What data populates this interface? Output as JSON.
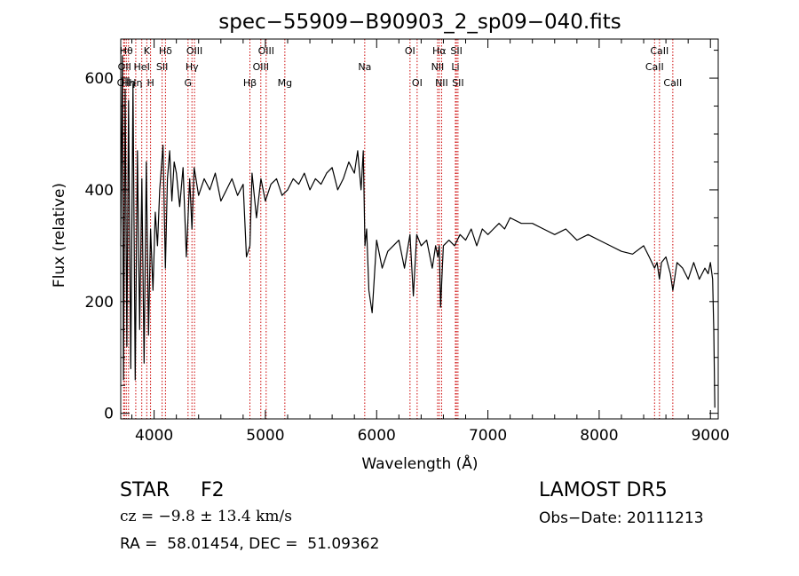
{
  "chart_data": {
    "type": "line",
    "title": "spec−55909−B90903_2_sp09−040.fits",
    "xlabel": "Wavelength (Å)",
    "ylabel": "Flux (relative)",
    "xlim": [
      3700,
      9070
    ],
    "ylim": [
      -10,
      670
    ],
    "x_ticks": [
      4000,
      5000,
      6000,
      7000,
      8000,
      9000
    ],
    "y_ticks": [
      0,
      200,
      400,
      600
    ],
    "grid": false,
    "line_color": "#000000",
    "marker_color": "#cc0000",
    "series": [
      {
        "x": [
          3700,
          3715,
          3725,
          3740,
          3755,
          3770,
          3790,
          3810,
          3830,
          3850,
          3870,
          3890,
          3910,
          3930,
          3950,
          3968,
          3990,
          4010,
          4030,
          4050,
          4080,
          4101,
          4120,
          4140,
          4160,
          4180,
          4200,
          4230,
          4260,
          4290,
          4320,
          4340,
          4360,
          4400,
          4450,
          4500,
          4550,
          4600,
          4650,
          4700,
          4750,
          4800,
          4830,
          4861,
          4880,
          4920,
          4960,
          5000,
          5050,
          5100,
          5150,
          5200,
          5250,
          5300,
          5350,
          5400,
          5450,
          5500,
          5550,
          5600,
          5650,
          5700,
          5750,
          5800,
          5830,
          5860,
          5880,
          5895,
          5910,
          5930,
          5960,
          6000,
          6050,
          6100,
          6150,
          6200,
          6250,
          6300,
          6330,
          6360,
          6400,
          6450,
          6500,
          6530,
          6550,
          6563,
          6575,
          6600,
          6650,
          6700,
          6750,
          6800,
          6850,
          6900,
          6950,
          7000,
          7050,
          7100,
          7150,
          7200,
          7300,
          7400,
          7500,
          7600,
          7700,
          7800,
          7900,
          8000,
          8100,
          8200,
          8300,
          8400,
          8450,
          8498,
          8520,
          8542,
          8560,
          8600,
          8640,
          8662,
          8700,
          8750,
          8800,
          8850,
          8900,
          8950,
          8980,
          9000,
          9020,
          9030,
          9040
        ],
        "y": [
          300,
          640,
          60,
          580,
          120,
          560,
          80,
          590,
          60,
          470,
          150,
          420,
          90,
          450,
          140,
          330,
          220,
          360,
          300,
          400,
          480,
          260,
          420,
          470,
          380,
          450,
          430,
          370,
          440,
          280,
          420,
          330,
          440,
          390,
          420,
          400,
          430,
          380,
          400,
          420,
          390,
          410,
          280,
          300,
          430,
          350,
          420,
          380,
          410,
          420,
          390,
          400,
          420,
          410,
          430,
          400,
          420,
          410,
          430,
          440,
          400,
          420,
          450,
          430,
          470,
          400,
          470,
          300,
          330,
          220,
          180,
          310,
          260,
          290,
          300,
          310,
          260,
          320,
          210,
          320,
          300,
          310,
          260,
          300,
          280,
          300,
          190,
          300,
          310,
          300,
          320,
          310,
          330,
          300,
          330,
          320,
          330,
          340,
          330,
          350,
          340,
          340,
          330,
          320,
          330,
          310,
          320,
          310,
          300,
          290,
          285,
          300,
          280,
          260,
          270,
          240,
          270,
          280,
          250,
          220,
          270,
          260,
          240,
          270,
          240,
          260,
          250,
          270,
          240,
          150,
          10
        ]
      }
    ],
    "line_markers": [
      {
        "x": 3726,
        "label": "OII",
        "row": 2
      },
      {
        "x": 3734,
        "label": "OII",
        "row": 1
      },
      {
        "x": 3750,
        "label": "Hθ",
        "row": 0
      },
      {
        "x": 3770,
        "label": "Hη",
        "row": 2
      },
      {
        "x": 3835,
        "label": "Hη",
        "row": 2
      },
      {
        "x": 3889,
        "label": "HeI",
        "row": 1
      },
      {
        "x": 3934,
        "label": "K",
        "row": 0
      },
      {
        "x": 3968,
        "label": "H",
        "row": 2
      },
      {
        "x": 4072,
        "label": "SII",
        "row": 1
      },
      {
        "x": 4102,
        "label": "Hδ",
        "row": 0
      },
      {
        "x": 4305,
        "label": "G",
        "row": 2
      },
      {
        "x": 4340,
        "label": "Hγ",
        "row": 1
      },
      {
        "x": 4363,
        "label": "OIII",
        "row": 0
      },
      {
        "x": 4861,
        "label": "Hβ",
        "row": 2
      },
      {
        "x": 4959,
        "label": "OIII",
        "row": 1
      },
      {
        "x": 5007,
        "label": "OIII",
        "row": 0
      },
      {
        "x": 5175,
        "label": "Mg",
        "row": 2
      },
      {
        "x": 5893,
        "label": "Na",
        "row": 1
      },
      {
        "x": 6300,
        "label": "OI",
        "row": 0
      },
      {
        "x": 6364,
        "label": "OI",
        "row": 2
      },
      {
        "x": 6548,
        "label": "NII",
        "row": 1
      },
      {
        "x": 6563,
        "label": "Hα",
        "row": 0
      },
      {
        "x": 6584,
        "label": "NII",
        "row": 2
      },
      {
        "x": 6708,
        "label": "Li",
        "row": 1
      },
      {
        "x": 6717,
        "label": "SII",
        "row": 0
      },
      {
        "x": 6731,
        "label": "SII",
        "row": 2
      },
      {
        "x": 8498,
        "label": "CaII",
        "row": 1
      },
      {
        "x": 8542,
        "label": "CaII",
        "row": 0
      },
      {
        "x": 8662,
        "label": "CaII",
        "row": 2
      }
    ]
  },
  "info": {
    "object_class": "STAR",
    "subclass": "F2",
    "survey": "LAMOST DR5",
    "redshift": "cz = −9.8 ± 13.4 km/s",
    "obs_date": "Obs−Date: 20111213",
    "coords": "RA =  58.01454, DEC =  51.09362"
  }
}
